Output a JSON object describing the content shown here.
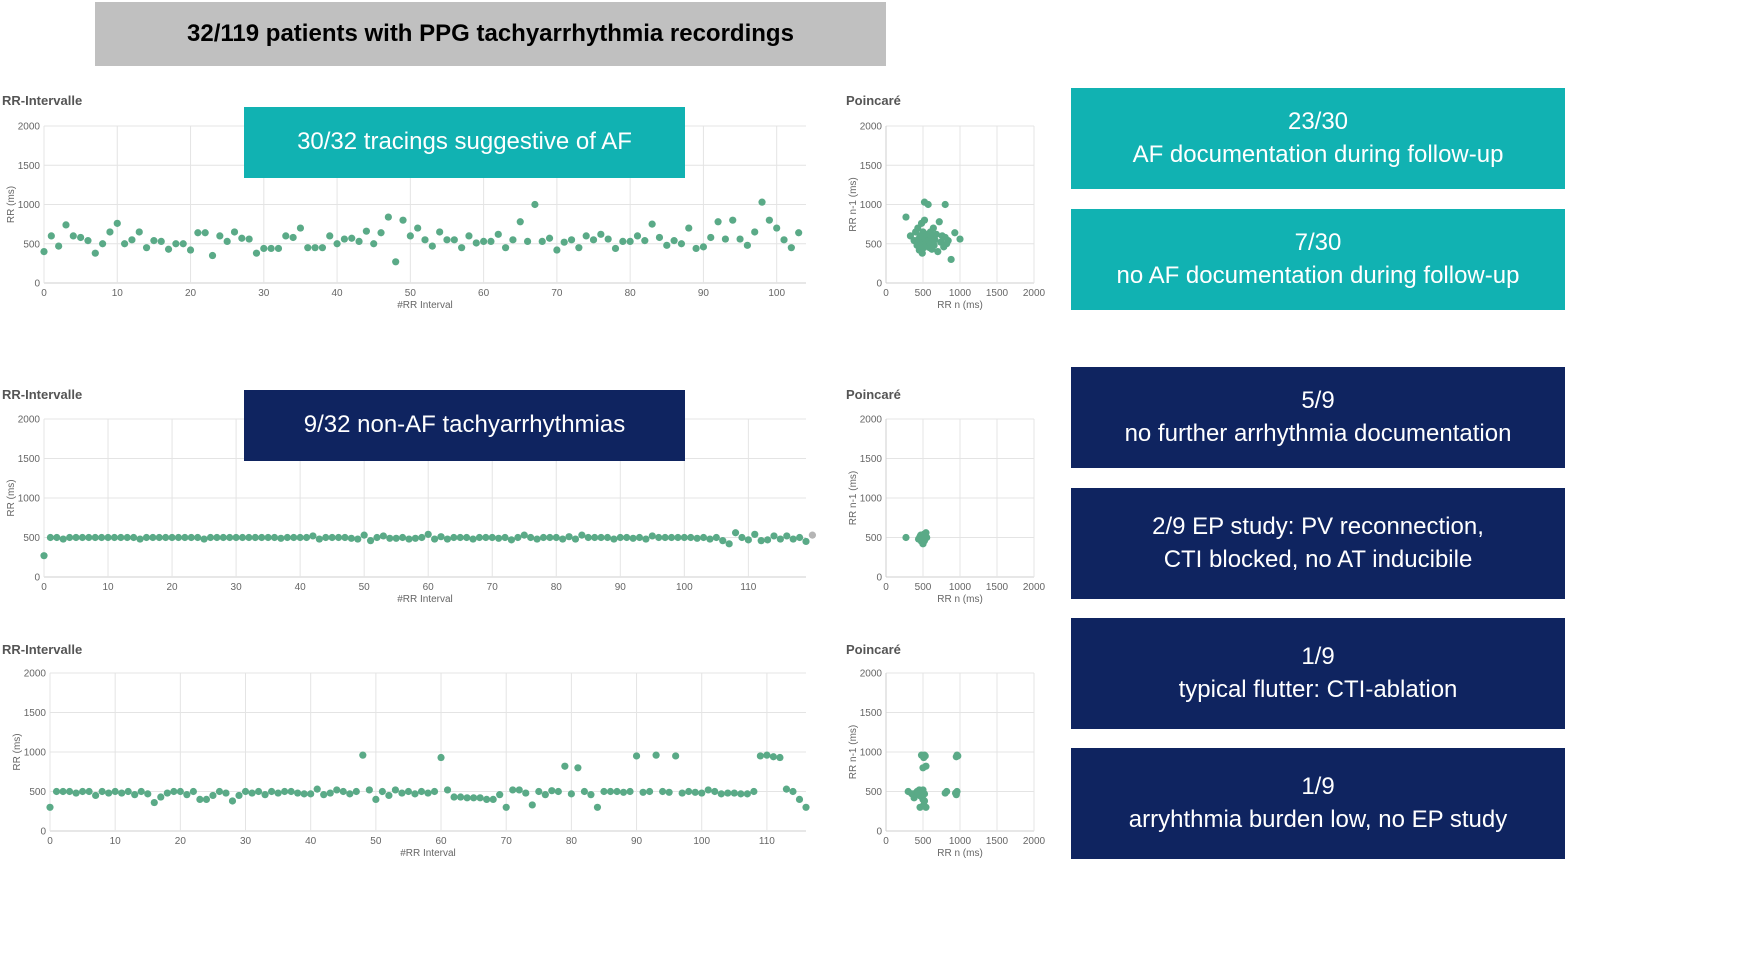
{
  "header": {
    "title": "32/119 patients with PPG tachyarrhythmia recordings"
  },
  "callouts": {
    "af": "30/32 tracings suggestive of AF",
    "non_af": "9/32 non-AF tachyarrhythmias"
  },
  "results": [
    {
      "count": "23/30",
      "text": "AF documentation during follow-up",
      "color": "#11b2b2"
    },
    {
      "count": "7/30",
      "text": "no AF documentation during follow-up",
      "color": "#11b2b2"
    },
    {
      "count": "5/9",
      "text": "no further arrhythmia documentation",
      "color": "#0f2460"
    },
    {
      "count": "2/9 EP study: PV reconnection,",
      "text": "CTI blocked, no AT inducibile",
      "color": "#0f2460"
    },
    {
      "count": "1/9",
      "text": "typical flutter: CTI-ablation",
      "color": "#0f2460"
    },
    {
      "count": "1/9",
      "text": "arryhthmia burden low, no EP study",
      "color": "#0f2460"
    }
  ],
  "colors": {
    "points": "#5aaa87",
    "teal": "#11b2b2",
    "navy": "#0f2460",
    "header_bg": "#c0c0c0"
  },
  "chart_data": [
    {
      "type": "scatter",
      "title": "RR-Intervalle",
      "xlabel": "#RR Interval",
      "ylabel": "RR (ms)",
      "xlim": [
        0,
        104
      ],
      "ylim": [
        0,
        2000
      ],
      "x_ticks": [
        0,
        10,
        20,
        30,
        40,
        50,
        60,
        70,
        80,
        90,
        100
      ],
      "y_ticks": [
        0,
        500,
        1000,
        1500,
        2000
      ],
      "values": [
        400,
        600,
        470,
        740,
        600,
        580,
        540,
        380,
        500,
        650,
        760,
        500,
        550,
        650,
        450,
        540,
        530,
        430,
        500,
        500,
        420,
        640,
        640,
        350,
        600,
        530,
        650,
        570,
        560,
        380,
        440,
        440,
        440,
        600,
        580,
        700,
        450,
        450,
        450,
        600,
        500,
        560,
        570,
        530,
        660,
        500,
        640,
        840,
        270,
        800,
        600,
        700,
        550,
        470,
        650,
        550,
        550,
        450,
        600,
        510,
        530,
        530,
        620,
        450,
        550,
        780,
        530,
        1000,
        530,
        570,
        420,
        520,
        550,
        450,
        600,
        550,
        620,
        560,
        440,
        530,
        530,
        600,
        540,
        750,
        580,
        480,
        540,
        500,
        700,
        440,
        460,
        580,
        780,
        560,
        800,
        560,
        480,
        650,
        1030,
        800,
        700,
        550,
        450,
        640
      ]
    },
    {
      "type": "scatter",
      "title": "Poincaré",
      "xlabel": "RR n (ms)",
      "ylabel": "RR n-1 (ms)",
      "xlim": [
        0,
        2000
      ],
      "ylim": [
        0,
        2000
      ],
      "ticks": [
        0,
        500,
        1000,
        1500,
        2000
      ],
      "series": [
        {
          "x": [
            270,
            330,
            380,
            400,
            420,
            430,
            440,
            450,
            460,
            470,
            480,
            490,
            500,
            500,
            510,
            520,
            530,
            540,
            550,
            560,
            570,
            580,
            590,
            600,
            600,
            610,
            620,
            630,
            640,
            650,
            660,
            680,
            700,
            720,
            740,
            760,
            780,
            800,
            820,
            840,
            880,
            930,
            1000,
            520,
            800
          ],
          "y": [
            840,
            600,
            540,
            650,
            480,
            700,
            560,
            420,
            600,
            500,
            760,
            380,
            650,
            520,
            450,
            800,
            560,
            470,
            620,
            530,
            1000,
            540,
            450,
            650,
            500,
            600,
            430,
            560,
            700,
            480,
            550,
            620,
            400,
            780,
            520,
            600,
            460,
            580,
            500,
            540,
            300,
            640,
            560,
            1030,
            1000
          ]
        }
      ]
    },
    {
      "type": "scatter",
      "title": "RR-Intervalle",
      "xlabel": "#RR Interval",
      "ylabel": "RR (ms)",
      "xlim": [
        0,
        119
      ],
      "ylim": [
        0,
        2000
      ],
      "x_ticks": [
        0,
        10,
        20,
        30,
        40,
        50,
        60,
        70,
        80,
        90,
        100,
        110
      ],
      "y_ticks": [
        0,
        500,
        1000,
        1500,
        2000
      ],
      "values": [
        270,
        500,
        500,
        480,
        500,
        500,
        500,
        500,
        500,
        500,
        500,
        500,
        500,
        500,
        500,
        480,
        500,
        500,
        500,
        500,
        500,
        500,
        500,
        500,
        500,
        480,
        500,
        500,
        500,
        500,
        500,
        500,
        500,
        500,
        500,
        500,
        500,
        490,
        500,
        500,
        500,
        500,
        520,
        480,
        500,
        500,
        500,
        500,
        490,
        480,
        530,
        460,
        500,
        520,
        490,
        490,
        500,
        480,
        490,
        500,
        540,
        480,
        510,
        480,
        500,
        500,
        500,
        480,
        500,
        500,
        500,
        490,
        500,
        470,
        500,
        530,
        500,
        480,
        500,
        500,
        500,
        480,
        510,
        480,
        530,
        500,
        500,
        500,
        500,
        480,
        500,
        500,
        490,
        500,
        480,
        520,
        500,
        500,
        500,
        500,
        500,
        500,
        490,
        500,
        480,
        500,
        460,
        420,
        560,
        500,
        470,
        540,
        460,
        470,
        520,
        480,
        520,
        480,
        500,
        450
      ],
      "greyed_last": 530
    },
    {
      "type": "scatter",
      "title": "Poincaré",
      "xlabel": "RR n (ms)",
      "ylabel": "RR n-1 (ms)",
      "xlim": [
        0,
        2000
      ],
      "ylim": [
        0,
        2000
      ],
      "ticks": [
        0,
        500,
        1000,
        1500,
        2000
      ],
      "series": [
        {
          "x": [
            440,
            460,
            470,
            480,
            490,
            500,
            500,
            510,
            510,
            520,
            530,
            540,
            500,
            270,
            460,
            480,
            550,
            520
          ],
          "y": [
            480,
            500,
            530,
            450,
            520,
            500,
            470,
            540,
            490,
            460,
            500,
            560,
            420,
            500,
            510,
            480,
            500,
            530
          ]
        }
      ]
    },
    {
      "type": "scatter",
      "title": "RR-Intervalle",
      "xlabel": "#RR Interval",
      "ylabel": "RR (ms)",
      "xlim": [
        0,
        116
      ],
      "ylim": [
        0,
        2000
      ],
      "x_ticks": [
        0,
        10,
        20,
        30,
        40,
        50,
        60,
        70,
        80,
        90,
        100,
        110
      ],
      "y_ticks": [
        0,
        500,
        1000,
        1500,
        2000
      ],
      "values": [
        300,
        500,
        500,
        500,
        480,
        500,
        500,
        450,
        500,
        480,
        500,
        480,
        500,
        460,
        500,
        470,
        360,
        430,
        480,
        500,
        500,
        460,
        500,
        400,
        400,
        450,
        500,
        480,
        380,
        450,
        500,
        480,
        500,
        460,
        500,
        480,
        500,
        500,
        480,
        470,
        470,
        530,
        460,
        480,
        520,
        500,
        470,
        500,
        960,
        520,
        400,
        500,
        450,
        520,
        480,
        500,
        470,
        500,
        480,
        500,
        930,
        520,
        430,
        430,
        420,
        420,
        420,
        400,
        400,
        460,
        300,
        520,
        520,
        480,
        330,
        500,
        460,
        510,
        500,
        820,
        470,
        800,
        500,
        460,
        300,
        500,
        500,
        500,
        490,
        500,
        950,
        490,
        500,
        960,
        500,
        490,
        950,
        480,
        500,
        490,
        480,
        520,
        500,
        470,
        480,
        480,
        470,
        470,
        500,
        950,
        960,
        940,
        930,
        530,
        500,
        400,
        300
      ]
    },
    {
      "type": "scatter",
      "title": "Poincaré",
      "xlabel": "RR n (ms)",
      "ylabel": "RR n-1 (ms)",
      "xlim": [
        0,
        2000
      ],
      "ylim": [
        0,
        2000
      ],
      "ticks": [
        0,
        500,
        1000,
        1500,
        2000
      ],
      "series": [
        {
          "x": [
            300,
            350,
            380,
            400,
            420,
            440,
            450,
            460,
            470,
            480,
            490,
            500,
            500,
            510,
            520,
            530,
            540,
            500,
            510,
            520,
            940,
            950,
            960,
            970,
            960,
            950,
            480,
            500,
            820,
            800,
            460,
            520,
            540,
            430
          ],
          "y": [
            500,
            470,
            420,
            480,
            500,
            460,
            520,
            300,
            440,
            510,
            480,
            500,
            400,
            930,
            960,
            950,
            820,
            800,
            330,
            470,
            480,
            460,
            500,
            950,
            960,
            940,
            960,
            520,
            500,
            480,
            450,
            380,
            300,
            500
          ]
        }
      ]
    }
  ]
}
